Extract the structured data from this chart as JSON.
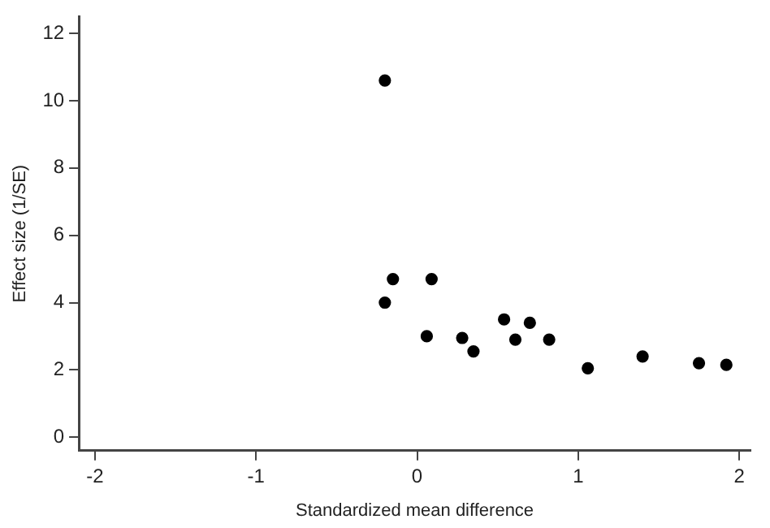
{
  "chart_data": {
    "type": "scatter",
    "xlabel": "Standardized mean difference",
    "ylabel": "Effect size (1/SE)",
    "x": [
      -0.2,
      -0.15,
      0.09,
      -0.2,
      0.06,
      0.28,
      0.35,
      0.54,
      0.7,
      0.61,
      0.82,
      1.06,
      1.4,
      1.75,
      1.92
    ],
    "values": [
      10.6,
      4.7,
      4.7,
      4.0,
      3.0,
      2.95,
      2.55,
      3.5,
      3.4,
      2.9,
      2.9,
      2.05,
      2.4,
      2.2,
      2.15
    ],
    "color": "#000000",
    "marker": "circle",
    "xlim": [
      -2.1,
      2.07
    ],
    "xticks": [
      -2,
      -1,
      0,
      1,
      2
    ],
    "ylim": [
      -0.4,
      12.5
    ],
    "yticks": [
      0,
      2,
      4,
      6,
      8,
      10,
      12
    ],
    "grid": false,
    "legend": false
  }
}
